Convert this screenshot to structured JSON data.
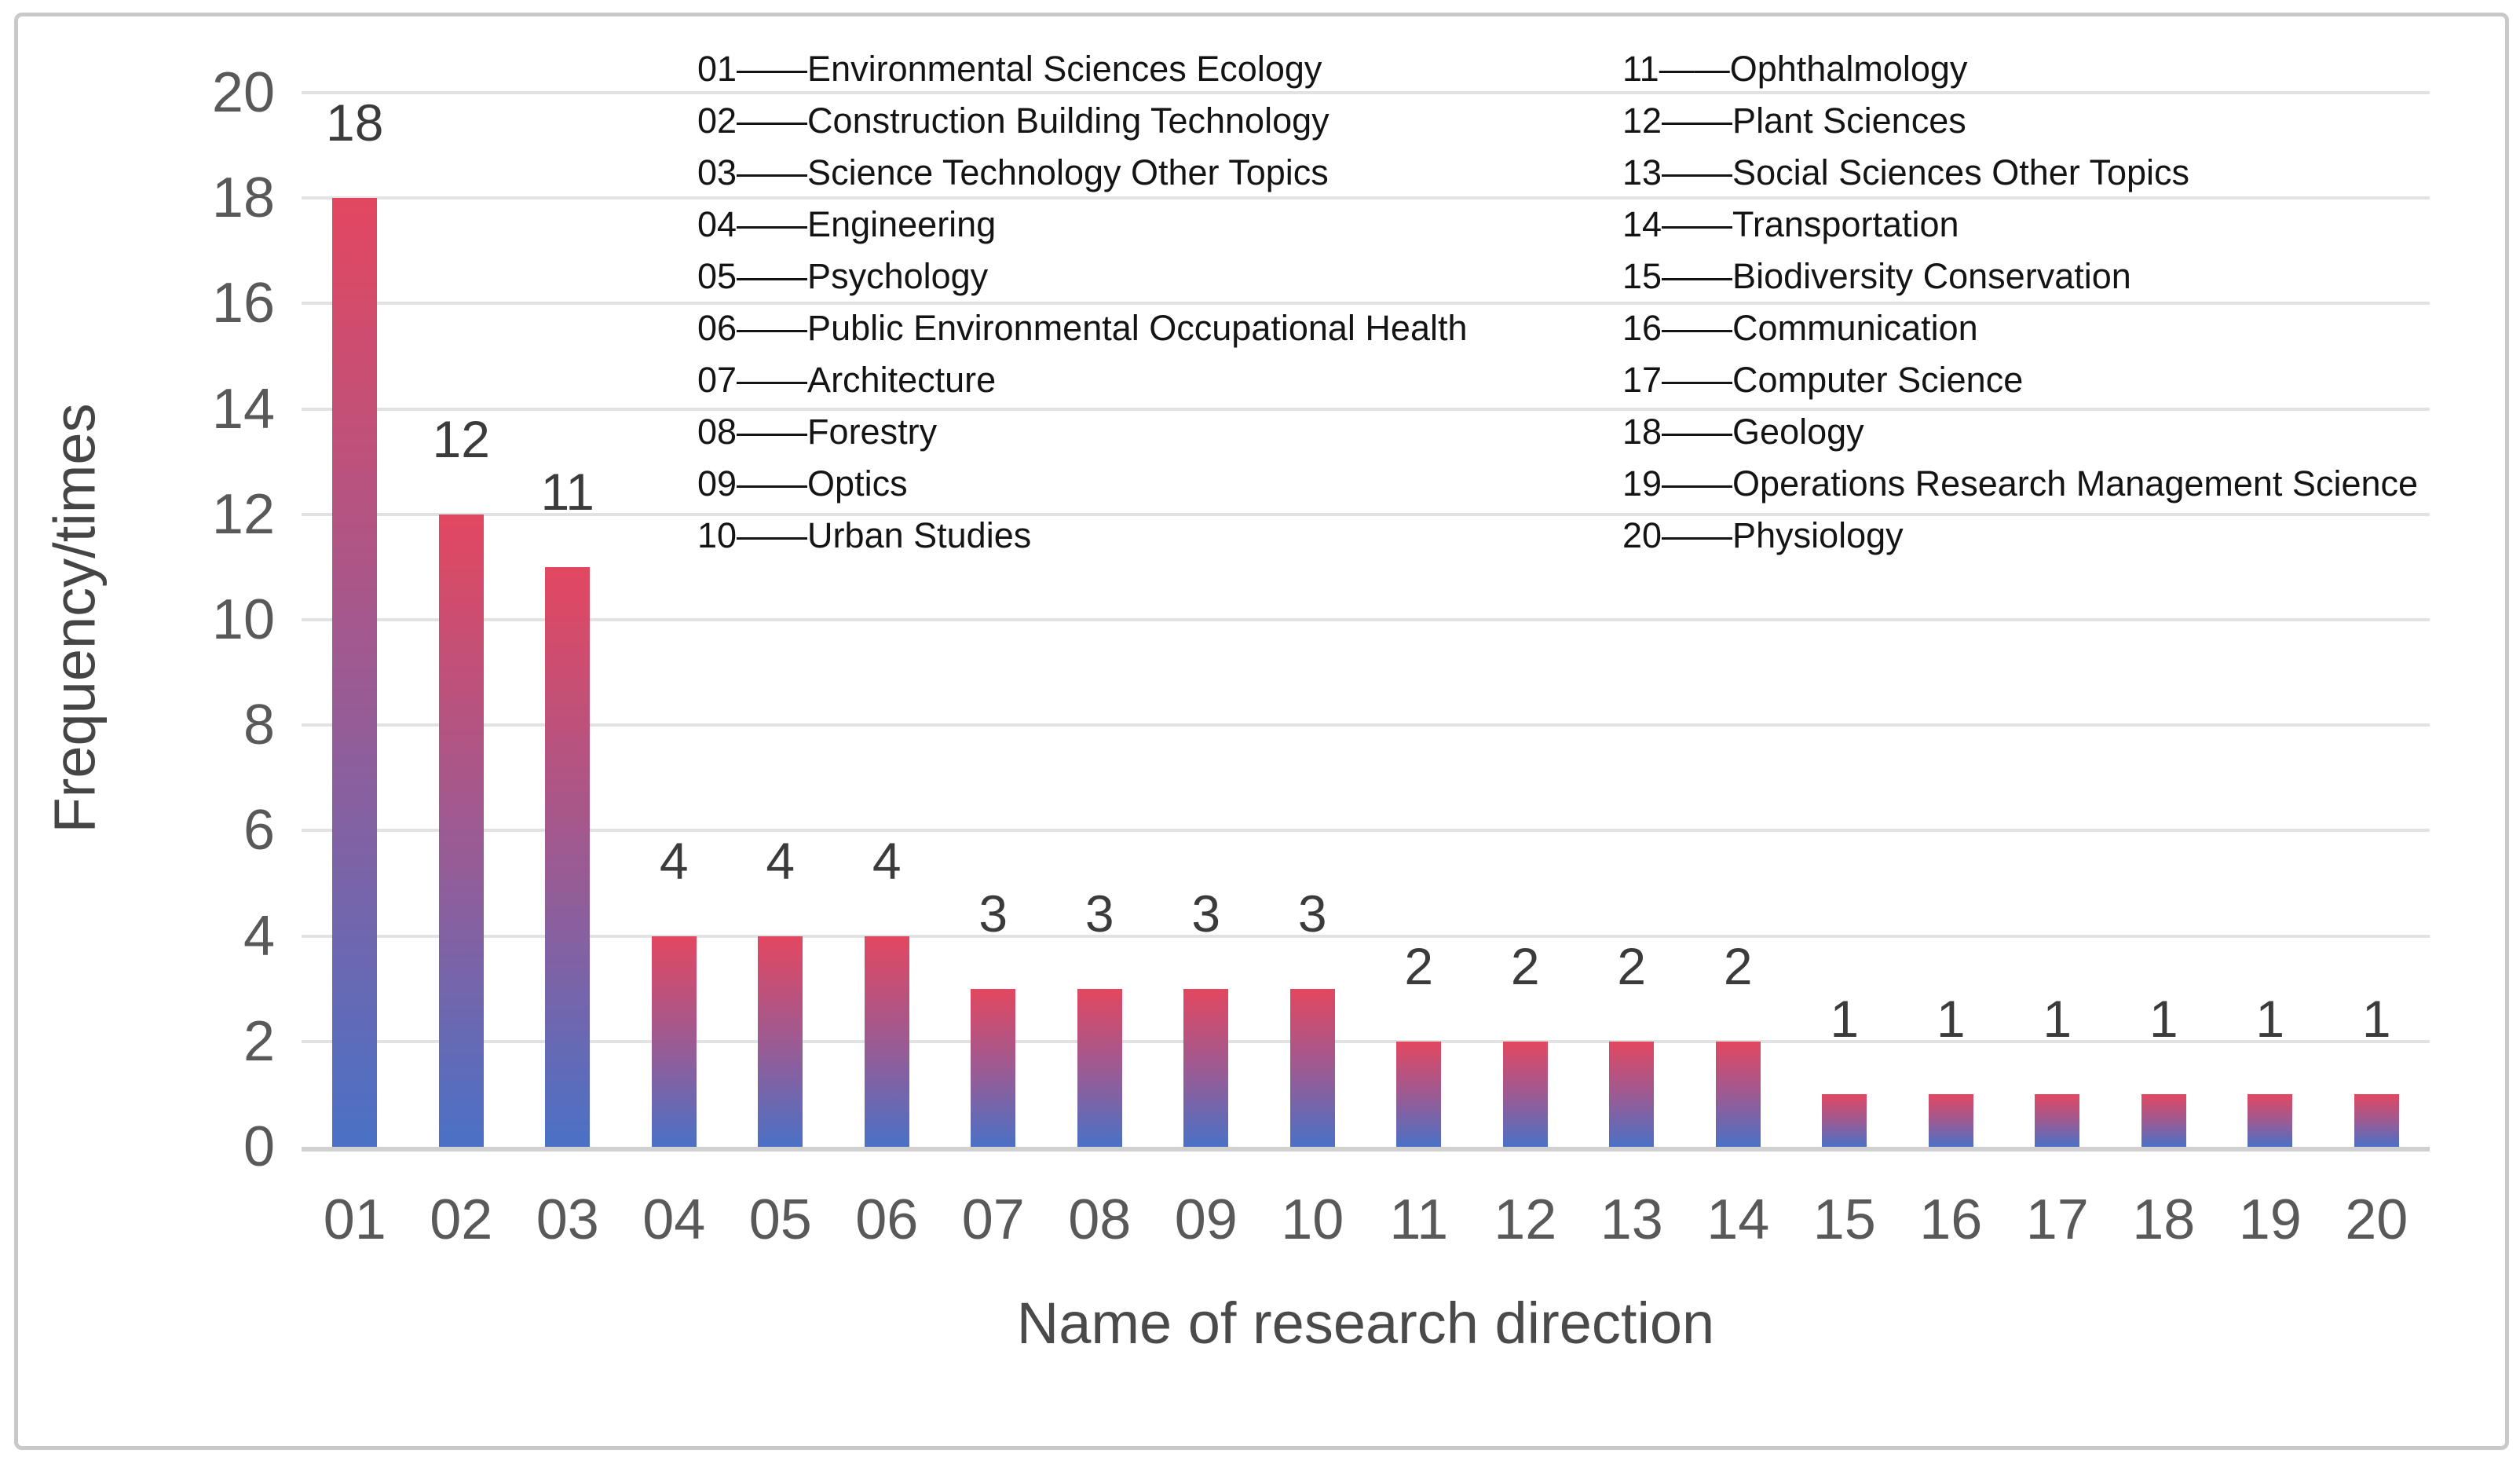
{
  "chart_data": {
    "type": "bar",
    "title": "",
    "xlabel": "Name of research direction",
    "ylabel": "Frequency/times",
    "ylim": [
      0,
      20
    ],
    "ytick_step": 2,
    "yticks": [
      0,
      2,
      4,
      6,
      8,
      10,
      12,
      14,
      16,
      18,
      20
    ],
    "grid": true,
    "categories": [
      "01",
      "02",
      "03",
      "04",
      "05",
      "06",
      "07",
      "08",
      "09",
      "10",
      "11",
      "12",
      "13",
      "14",
      "15",
      "16",
      "17",
      "18",
      "19",
      "20"
    ],
    "values": [
      18,
      12,
      11,
      4,
      4,
      4,
      3,
      3,
      3,
      3,
      2,
      2,
      2,
      2,
      1,
      1,
      1,
      1,
      1,
      1
    ],
    "data_labels_shown": true,
    "bar_gradient_top_color": "#e34760",
    "bar_gradient_bottom_color": "#4a71c6",
    "gridline_color": "#e2e2e2",
    "axis_line_color": "#d0d0d0",
    "legend_position": "top-inside-two-columns",
    "legend_left_column": [
      "01——Environmental Sciences Ecology",
      "02——Construction Building Technology",
      "03——Science Technology Other Topics",
      "04——Engineering",
      "05——Psychology",
      "06——Public Environmental Occupational Health",
      "07——Architecture",
      "08——Forestry",
      "09——Optics",
      "10——Urban Studies"
    ],
    "legend_right_column": [
      "11——Ophthalmology",
      "12——Plant Sciences",
      "13——Social Sciences Other Topics",
      "14——Transportation",
      "15——Biodiversity Conservation",
      "16——Communication",
      "17——Computer Science",
      "18——Geology",
      "19——Operations Research Management Science",
      "20——Physiology"
    ]
  }
}
